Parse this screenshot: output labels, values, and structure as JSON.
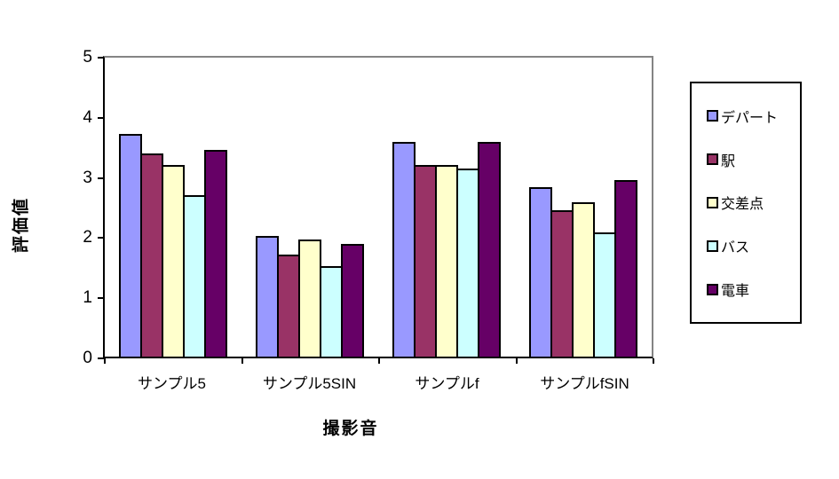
{
  "chart_data": {
    "type": "bar",
    "title": "",
    "categories": [
      "サンプル5",
      "サンプル5SIN",
      "サンプルf",
      "サンプルfSIN"
    ],
    "series": [
      {
        "name": "デパート",
        "color": "#9999FF",
        "values": [
          3.7,
          2.0,
          3.57,
          2.81
        ]
      },
      {
        "name": "駅",
        "color": "#993366",
        "values": [
          3.38,
          1.69,
          3.19,
          2.44
        ]
      },
      {
        "name": "交差点",
        "color": "#FFFFCC",
        "values": [
          3.19,
          1.94,
          3.19,
          2.56
        ]
      },
      {
        "name": "バス",
        "color": "#CCFFFF",
        "values": [
          2.69,
          1.5,
          3.13,
          2.06
        ]
      },
      {
        "name": "電車",
        "color": "#660066",
        "values": [
          3.44,
          1.88,
          3.57,
          2.94
        ]
      }
    ],
    "xlabel": "撮影音",
    "ylabel": "評価値",
    "ylim": [
      0,
      5
    ],
    "yticks": [
      0,
      1,
      2,
      3,
      4,
      5
    ],
    "grid": false,
    "legend_position": "right",
    "colors": {
      "plot_border": "#848484",
      "axis_line": "#000000",
      "bar_outline": "#000000",
      "background": "#FFFFFF"
    }
  }
}
